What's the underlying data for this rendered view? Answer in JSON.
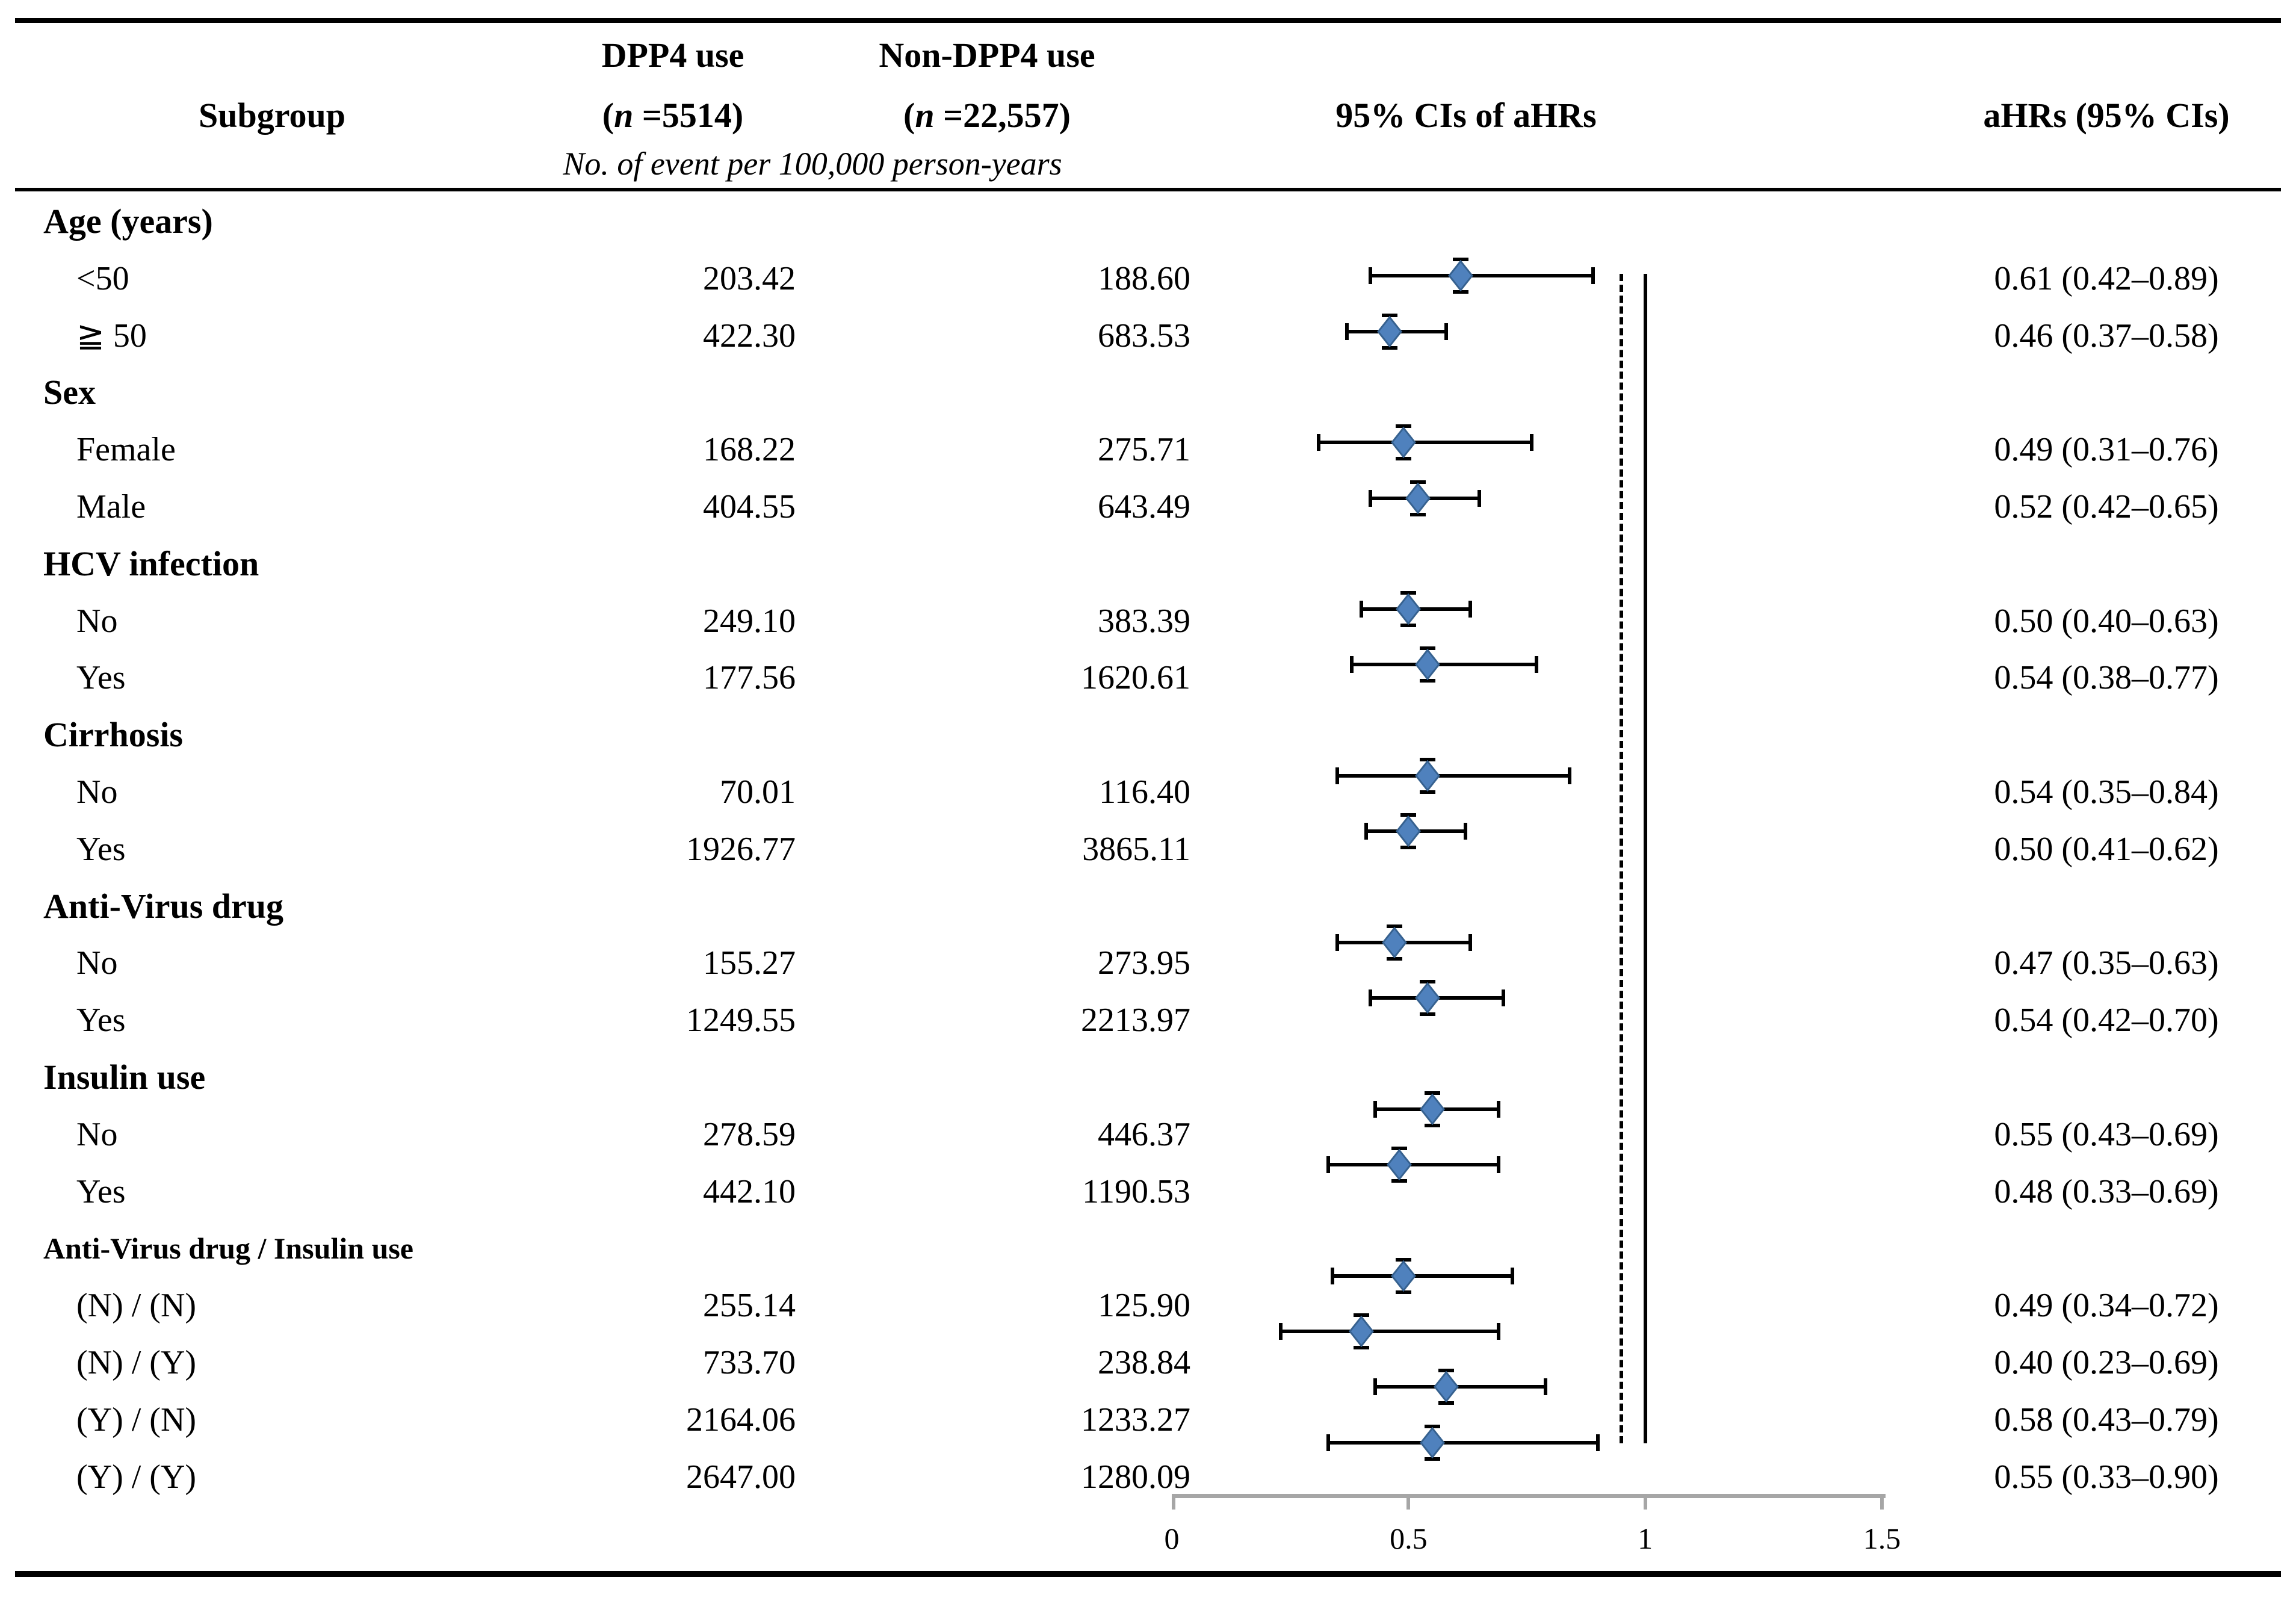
{
  "header": {
    "subgroup": "Subgroup",
    "dpp4_title": "DPP4 use",
    "dpp4_count_open": "(",
    "dpp4_count_n": "n",
    "dpp4_count_rest": " =5514)",
    "nondpp4_title": "Non-DPP4 use",
    "nondpp4_count_open": "(",
    "nondpp4_count_n": "n",
    "nondpp4_count_rest": " =22,557)",
    "events_note": "No. of event per 100,000 person-years",
    "ci_title": "95% CIs of aHRs",
    "ahr_title": "aHRs (95% CIs)"
  },
  "sections": [
    {
      "label": "Age (years)",
      "small": false,
      "rows": [
        {
          "label": "<50",
          "dpp4": "203.42",
          "non_dpp4": "188.60",
          "ahr": "0.61 (0.42–0.89)",
          "est": 0.61,
          "lo": 0.42,
          "hi": 0.89
        },
        {
          "label": "≧ 50",
          "dpp4": "422.30",
          "non_dpp4": "683.53",
          "ahr": "0.46 (0.37–0.58)",
          "est": 0.46,
          "lo": 0.37,
          "hi": 0.58
        }
      ]
    },
    {
      "label": "Sex",
      "small": false,
      "rows": [
        {
          "label": "Female",
          "dpp4": "168.22",
          "non_dpp4": "275.71",
          "ahr": "0.49 (0.31–0.76)",
          "est": 0.49,
          "lo": 0.31,
          "hi": 0.76
        },
        {
          "label": "Male",
          "dpp4": "404.55",
          "non_dpp4": "643.49",
          "ahr": "0.52 (0.42–0.65)",
          "est": 0.52,
          "lo": 0.42,
          "hi": 0.65
        }
      ]
    },
    {
      "label": "HCV infection",
      "small": false,
      "rows": [
        {
          "label": "No",
          "dpp4": "249.10",
          "non_dpp4": "383.39",
          "ahr": "0.50 (0.40–0.63)",
          "est": 0.5,
          "lo": 0.4,
          "hi": 0.63
        },
        {
          "label": "Yes",
          "dpp4": "177.56",
          "non_dpp4": "1620.61",
          "ahr": "0.54 (0.38–0.77)",
          "est": 0.54,
          "lo": 0.38,
          "hi": 0.77
        }
      ]
    },
    {
      "label": "Cirrhosis",
      "small": false,
      "rows": [
        {
          "label": "No",
          "dpp4": "70.01",
          "non_dpp4": "116.40",
          "ahr": "0.54 (0.35–0.84)",
          "est": 0.54,
          "lo": 0.35,
          "hi": 0.84
        },
        {
          "label": "Yes",
          "dpp4": "1926.77",
          "non_dpp4": "3865.11",
          "ahr": "0.50 (0.41–0.62)",
          "est": 0.5,
          "lo": 0.41,
          "hi": 0.62
        }
      ]
    },
    {
      "label": "Anti-Virus drug",
      "small": false,
      "rows": [
        {
          "label": "No",
          "dpp4": "155.27",
          "non_dpp4": "273.95",
          "ahr": "0.47 (0.35–0.63)",
          "est": 0.47,
          "lo": 0.35,
          "hi": 0.63
        },
        {
          "label": "Yes",
          "dpp4": "1249.55",
          "non_dpp4": "2213.97",
          "ahr": "0.54 (0.42–0.70)",
          "est": 0.54,
          "lo": 0.42,
          "hi": 0.7
        }
      ]
    },
    {
      "label": "Insulin use",
      "small": false,
      "rows": [
        {
          "label": "No",
          "dpp4": "278.59",
          "non_dpp4": "446.37",
          "ahr": "0.55 (0.43–0.69)",
          "est": 0.55,
          "lo": 0.43,
          "hi": 0.69
        },
        {
          "label": "Yes",
          "dpp4": "442.10",
          "non_dpp4": "1190.53",
          "ahr": "0.48 (0.33–0.69)",
          "est": 0.48,
          "lo": 0.33,
          "hi": 0.69
        }
      ]
    },
    {
      "label": "Anti-Virus drug / Insulin use",
      "small": true,
      "rows": [
        {
          "label": "(N) / (N)",
          "dpp4": "255.14",
          "non_dpp4": "125.90",
          "ahr": "0.49 (0.34–0.72)",
          "est": 0.49,
          "lo": 0.34,
          "hi": 0.72
        },
        {
          "label": "(N) / (Y)",
          "dpp4": "733.70",
          "non_dpp4": "238.84",
          "ahr": "0.40 (0.23–0.69)",
          "est": 0.4,
          "lo": 0.23,
          "hi": 0.69
        },
        {
          "label": "(Y) / (N)",
          "dpp4": "2164.06",
          "non_dpp4": "1233.27",
          "ahr": "0.58 (0.43–0.79)",
          "est": 0.58,
          "lo": 0.43,
          "hi": 0.79
        },
        {
          "label": "(Y) / (Y)",
          "dpp4": "2647.00",
          "non_dpp4": "1280.09",
          "ahr": "0.55 (0.33–0.90)",
          "est": 0.55,
          "lo": 0.33,
          "hi": 0.9
        }
      ]
    }
  ],
  "axis": {
    "min": 0,
    "max": 1.5,
    "tick_labels": [
      "0",
      "0.5",
      "1",
      "1.5"
    ],
    "tick_values": [
      0,
      0.5,
      1,
      1.5
    ],
    "ref_lines": [
      {
        "style": "dashed",
        "value": 0.95
      },
      {
        "style": "solid",
        "value": 1.0
      }
    ]
  },
  "colors": {
    "marker_fill": "#4f81bd",
    "marker_stroke": "#36618f",
    "axis_gray": "#a6a6a6",
    "line_black": "#000000"
  },
  "marker_shape": "diamond",
  "chart_data": {
    "type": "scatter",
    "subtype": "forest-plot",
    "title": "95% CIs of aHRs",
    "xlabel": "",
    "ylabel": "",
    "xlim": [
      0,
      1.5
    ],
    "xticks": [
      0,
      0.5,
      1,
      1.5
    ],
    "grid": false,
    "legend_position": "none",
    "reference_line": 1.0,
    "categories": [
      "Age <50",
      "Age ≧ 50",
      "Sex Female",
      "Sex Male",
      "HCV infection No",
      "HCV infection Yes",
      "Cirrhosis No",
      "Cirrhosis Yes",
      "Anti-Virus drug No",
      "Anti-Virus drug Yes",
      "Insulin use No",
      "Insulin use Yes",
      "Anti-Virus drug / Insulin use (N) / (N)",
      "Anti-Virus drug / Insulin use (N) / (Y)",
      "Anti-Virus drug / Insulin use (Y) / (N)",
      "Anti-Virus drug / Insulin use (Y) / (Y)"
    ],
    "series": [
      {
        "name": "aHR",
        "values": [
          0.61,
          0.46,
          0.49,
          0.52,
          0.5,
          0.54,
          0.54,
          0.5,
          0.47,
          0.54,
          0.55,
          0.48,
          0.49,
          0.4,
          0.58,
          0.55
        ]
      },
      {
        "name": "CI lower",
        "values": [
          0.42,
          0.37,
          0.31,
          0.42,
          0.4,
          0.38,
          0.35,
          0.41,
          0.35,
          0.42,
          0.43,
          0.33,
          0.34,
          0.23,
          0.43,
          0.33
        ]
      },
      {
        "name": "CI upper",
        "values": [
          0.89,
          0.58,
          0.76,
          0.65,
          0.63,
          0.77,
          0.84,
          0.62,
          0.63,
          0.7,
          0.69,
          0.69,
          0.72,
          0.69,
          0.79,
          0.9
        ]
      },
      {
        "name": "DPP4 use events per 100,000 person-years",
        "values": [
          203.42,
          422.3,
          168.22,
          404.55,
          249.1,
          177.56,
          70.01,
          1926.77,
          155.27,
          1249.55,
          278.59,
          442.1,
          255.14,
          733.7,
          2164.06,
          2647.0
        ]
      },
      {
        "name": "Non-DPP4 use events per 100,000 person-years",
        "values": [
          188.6,
          683.53,
          275.71,
          643.49,
          383.39,
          1620.61,
          116.4,
          3865.11,
          273.95,
          2213.97,
          446.37,
          1190.53,
          125.9,
          238.84,
          1233.27,
          1280.09
        ]
      }
    ]
  }
}
